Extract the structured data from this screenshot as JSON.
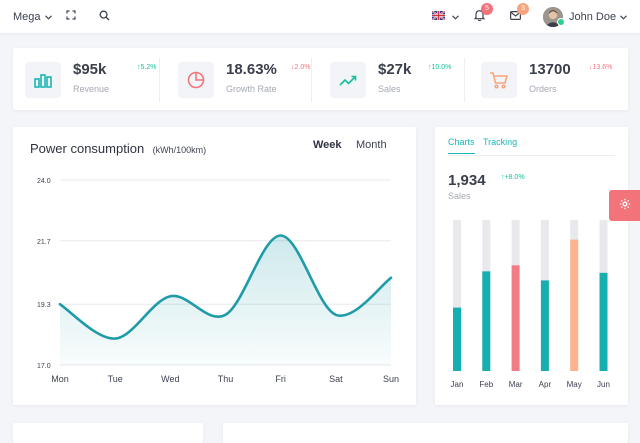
{
  "topbar": {
    "mega_label": "Mega",
    "notification_count": "5",
    "message_count": "3",
    "user_name": "John Doe"
  },
  "stats": [
    {
      "value": "$95k",
      "label": "Revenue",
      "change": "5.2%",
      "trend": "up",
      "icon": "bar-chart-icon",
      "color": "#1cb5b5"
    },
    {
      "value": "18.63%",
      "label": "Growth Rate",
      "change": "2.0%",
      "trend": "down",
      "icon": "pie-chart-icon",
      "color": "#f0767b"
    },
    {
      "value": "$27k",
      "label": "Sales",
      "change": "10.0%",
      "trend": "up",
      "icon": "trending-up-icon",
      "color": "#14c29a"
    },
    {
      "value": "13700",
      "label": "Orders",
      "change": "13.6%",
      "trend": "down",
      "icon": "cart-icon",
      "color": "#f7a47e"
    }
  ],
  "power": {
    "title": "Power consumption",
    "unit": "(kWh/100km)",
    "tabs": [
      "Week",
      "Month"
    ],
    "active_tab": "Week"
  },
  "side": {
    "tabs": [
      "Charts",
      "Tracking"
    ],
    "active_tab": "Charts",
    "value": "1,934",
    "change": "+8.0%",
    "label": "Sales"
  },
  "chart_data": [
    {
      "type": "area",
      "x": [
        "Mon",
        "Tue",
        "Wed",
        "Thu",
        "Fri",
        "Sat",
        "Sun"
      ],
      "y_ticks": [
        "24.0",
        "21.7",
        "19.3",
        "17.0"
      ],
      "ylim": [
        17.0,
        24.0
      ],
      "series": [
        {
          "values": [
            19.3,
            18.0,
            19.6,
            18.9,
            21.9,
            18.9,
            20.3
          ]
        }
      ],
      "grid": true,
      "color": "#1e9ba8"
    },
    {
      "type": "bar",
      "categories": [
        "Jan",
        "Feb",
        "Mar",
        "Apr",
        "May",
        "Jun"
      ],
      "values": [
        42,
        66,
        70,
        60,
        87,
        65
      ],
      "ylim": [
        0,
        100
      ],
      "colors": [
        "#17aeb0",
        "#17aeb0",
        "#f27c85",
        "#17aeb0",
        "#fcb38f",
        "#17aeb0"
      ],
      "track_color": "#e8e9ec"
    }
  ]
}
